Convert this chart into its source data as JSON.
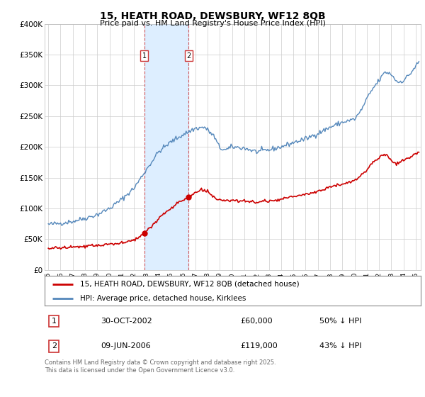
{
  "title": "15, HEATH ROAD, DEWSBURY, WF12 8QB",
  "subtitle": "Price paid vs. HM Land Registry's House Price Index (HPI)",
  "ylim": [
    0,
    400000
  ],
  "yticks": [
    0,
    50000,
    100000,
    150000,
    200000,
    250000,
    300000,
    350000,
    400000
  ],
  "ytick_labels": [
    "£0",
    "£50K",
    "£100K",
    "£150K",
    "£200K",
    "£250K",
    "£300K",
    "£350K",
    "£400K"
  ],
  "sale1_date": 2002.83,
  "sale1_price": 60000,
  "sale1_label": "1",
  "sale1_display": "30-OCT-2002",
  "sale1_price_display": "£60,000",
  "sale1_hpi_text": "50% ↓ HPI",
  "sale2_date": 2006.44,
  "sale2_price": 119000,
  "sale2_label": "2",
  "sale2_display": "09-JUN-2006",
  "sale2_price_display": "£119,000",
  "sale2_hpi_text": "43% ↓ HPI",
  "legend_line1": "15, HEATH ROAD, DEWSBURY, WF12 8QB (detached house)",
  "legend_line2": "HPI: Average price, detached house, Kirklees",
  "footer": "Contains HM Land Registry data © Crown copyright and database right 2025.\nThis data is licensed under the Open Government Licence v3.0.",
  "line_color_red": "#cc0000",
  "line_color_blue": "#5588bb",
  "shade_color": "#ddeeff",
  "vline_color": "#cc3333",
  "background_color": "#ffffff",
  "grid_color": "#cccccc",
  "hpi_breakpoints_t": [
    1995.0,
    1996.0,
    1997.0,
    1998.0,
    1999.0,
    2000.0,
    2001.0,
    2002.0,
    2003.0,
    2004.0,
    2005.0,
    2006.0,
    2007.0,
    2007.75,
    2008.5,
    2009.0,
    2009.5,
    2010.0,
    2011.0,
    2012.0,
    2013.0,
    2014.0,
    2015.0,
    2016.0,
    2017.0,
    2018.0,
    2019.0,
    2020.0,
    2020.5,
    2021.0,
    2021.5,
    2022.0,
    2022.5,
    2023.0,
    2023.5,
    2024.0,
    2024.5,
    2025.25
  ],
  "hpi_breakpoints_v": [
    74000,
    76000,
    79000,
    84000,
    90000,
    100000,
    115000,
    133000,
    163000,
    192000,
    208000,
    220000,
    230000,
    232000,
    218000,
    198000,
    195000,
    200000,
    198000,
    192000,
    195000,
    200000,
    207000,
    213000,
    222000,
    232000,
    240000,
    245000,
    258000,
    278000,
    295000,
    308000,
    322000,
    318000,
    305000,
    308000,
    318000,
    338000
  ],
  "red_breakpoints_t": [
    1995.0,
    1996.0,
    1997.0,
    1998.0,
    1999.0,
    2000.0,
    2001.0,
    2002.0,
    2002.83,
    2003.5,
    2004.0,
    2005.0,
    2005.5,
    2006.0,
    2006.44,
    2007.0,
    2007.5,
    2008.0,
    2008.5,
    2009.0,
    2010.0,
    2011.0,
    2012.0,
    2013.0,
    2014.0,
    2015.0,
    2016.0,
    2017.0,
    2018.0,
    2019.0,
    2020.0,
    2020.5,
    2021.0,
    2021.5,
    2022.0,
    2022.5,
    2023.0,
    2023.5,
    2024.0,
    2024.5,
    2025.25
  ],
  "red_breakpoints_v": [
    35000,
    36000,
    37000,
    38000,
    40000,
    42000,
    44000,
    48000,
    60000,
    72000,
    85000,
    100000,
    108000,
    113000,
    119000,
    125000,
    130000,
    128000,
    118000,
    112000,
    113000,
    112000,
    110000,
    112000,
    115000,
    119000,
    123000,
    128000,
    135000,
    140000,
    145000,
    153000,
    163000,
    175000,
    183000,
    188000,
    178000,
    172000,
    178000,
    183000,
    192000
  ]
}
